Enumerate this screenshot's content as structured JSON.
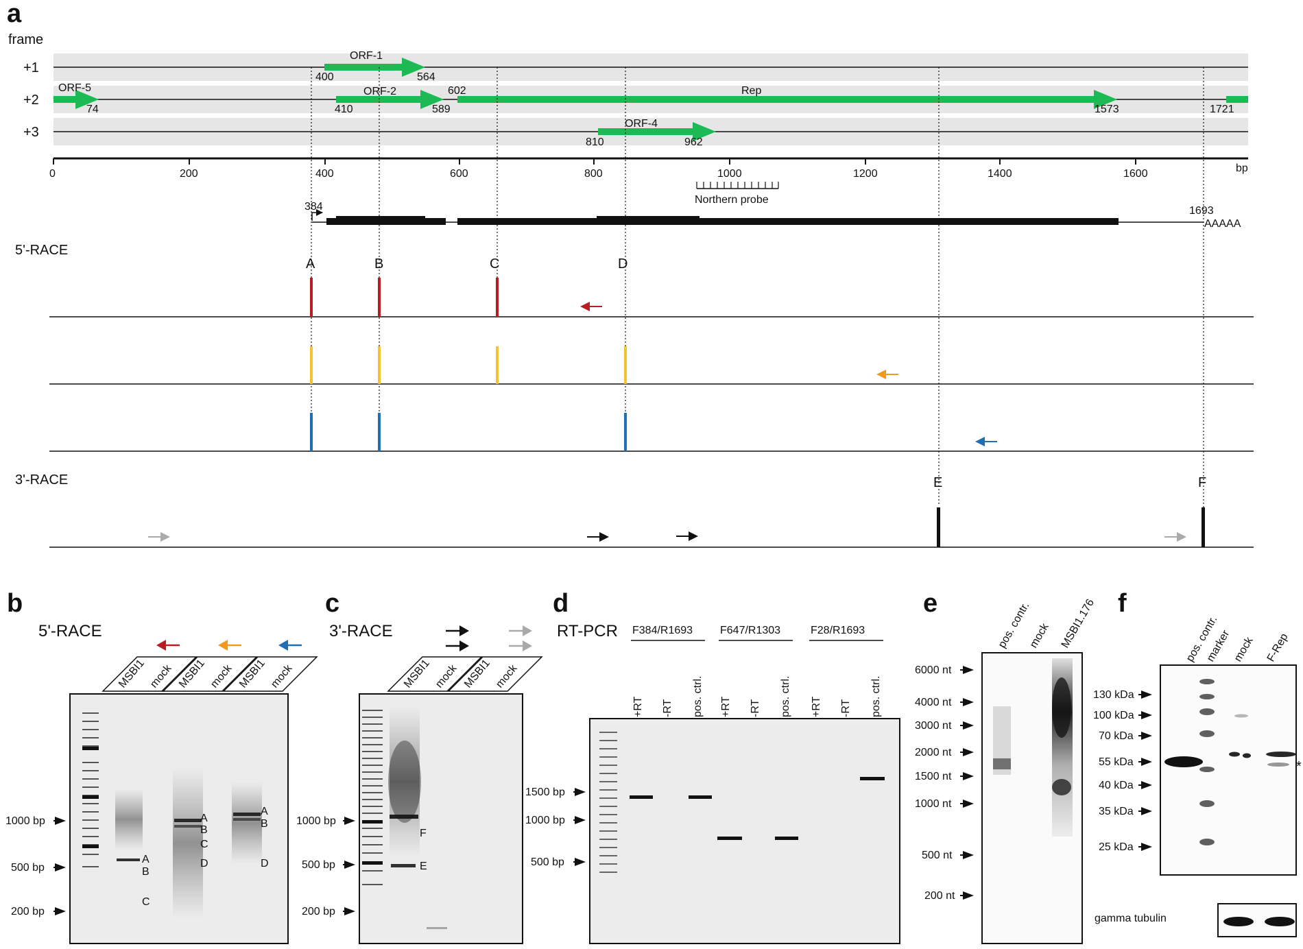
{
  "panel_a": {
    "letter": "a",
    "frame_label": "frame",
    "frames": [
      "+1",
      "+2",
      "+3"
    ],
    "orfs": {
      "orf1": {
        "name": "ORF-1",
        "start": "400",
        "end": "564"
      },
      "orf5": {
        "name": "ORF-5",
        "end": "74"
      },
      "orf2": {
        "name": "ORF-2",
        "start": "410",
        "end": "589"
      },
      "rep": {
        "name": "Rep",
        "start": "602",
        "end": "1573",
        "extra": "1721"
      },
      "orf4": {
        "name": "ORF-4",
        "start": "810",
        "end": "962"
      }
    },
    "axis": {
      "ticks": [
        "0",
        "200",
        "400",
        "600",
        "800",
        "1000",
        "1200",
        "1400",
        "1600"
      ],
      "unit": "bp"
    },
    "northern_probe": "Northern probe",
    "transcript": {
      "start": "384",
      "end": "1693",
      "polya": "AAAAA"
    },
    "race5_label": "5'-RACE",
    "race3_label": "3'-RACE",
    "sites_5": [
      "A",
      "B",
      "C",
      "D"
    ],
    "sites_3": [
      "E",
      "F"
    ],
    "colors": {
      "green": "#1db954",
      "red": "#b81d24",
      "yellow": "#f5c230",
      "orange": "#f29a1f",
      "blue": "#1f6fb5",
      "gray": "#aaaaaa"
    }
  },
  "panel_b": {
    "letter": "b",
    "title": "5'-RACE",
    "lanes": [
      "MSBI1",
      "mock",
      "MSBI1",
      "mock",
      "MSBI1",
      "mock"
    ],
    "markers": [
      "1000 bp",
      "500 bp",
      "200 bp"
    ],
    "bands": {
      "l1": [
        "A",
        "B",
        "C"
      ],
      "l2": [
        "A",
        "B",
        "C",
        "D"
      ],
      "l3": [
        "A",
        "B",
        "D"
      ]
    }
  },
  "panel_c": {
    "letter": "c",
    "title": "3'-RACE",
    "lanes": [
      "MSBI1",
      "mock",
      "MSBI1",
      "mock"
    ],
    "markers": [
      "1000 bp",
      "500 bp",
      "200 bp"
    ],
    "bands": [
      "F",
      "E"
    ]
  },
  "panel_d": {
    "letter": "d",
    "title": "RT-PCR",
    "groups": [
      "F384/R1693",
      "F647/R1303",
      "F28/R1693"
    ],
    "lanes": [
      "+RT",
      "-RT",
      "pos. ctrl."
    ],
    "markers": [
      "1500 bp",
      "1000 bp",
      "500 bp"
    ]
  },
  "panel_e": {
    "letter": "e",
    "lanes": [
      "pos. contr.",
      "mock",
      "MSBI1.176"
    ],
    "markers": [
      "6000 nt",
      "4000 nt",
      "3000 nt",
      "2000 nt",
      "1500 nt",
      "1000 nt",
      "500 nt",
      "200 nt"
    ]
  },
  "panel_f": {
    "letter": "f",
    "lanes": [
      "pos. contr.",
      "marker",
      "mock",
      "F-Rep"
    ],
    "markers": [
      "130 kDa",
      "100 kDa",
      "70 kDa",
      "55 kDa",
      "40 kDa",
      "35 kDa",
      "25 kDa"
    ],
    "asterisk": "*",
    "loading": "gamma tubulin"
  }
}
